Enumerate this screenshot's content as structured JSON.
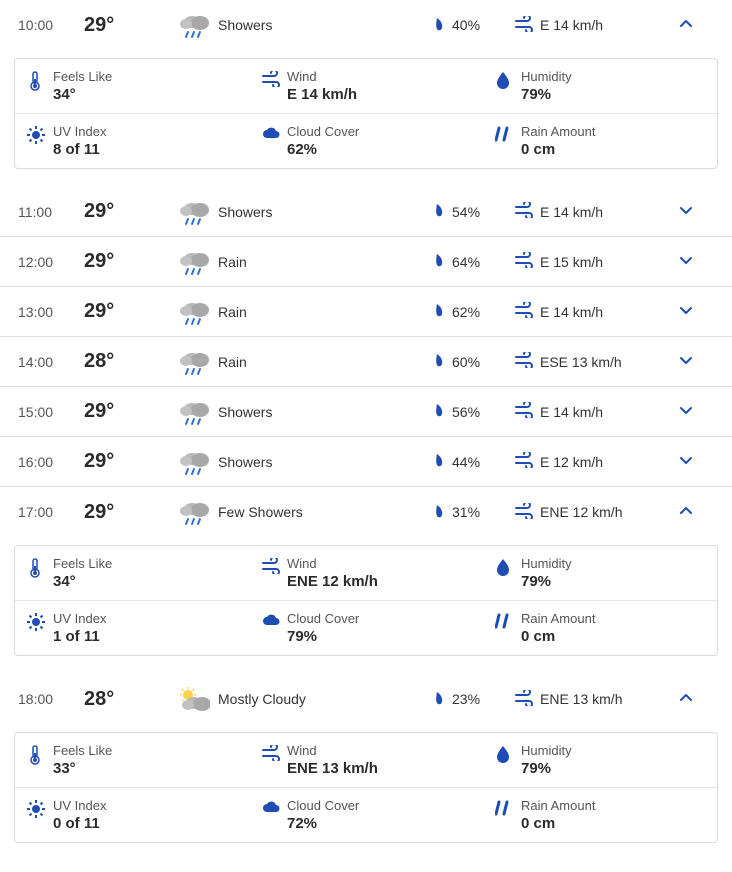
{
  "colors": {
    "accent": "#1f4db3",
    "cloud": "#b8b8b8",
    "cloud_dark": "#9a9a9a",
    "sun": "#ffd24a",
    "rain_drop": "#2f6fd0",
    "text": "#2b2b2b",
    "muted": "#555555",
    "border": "#dedede"
  },
  "detail_labels": {
    "feels": "Feels Like",
    "wind": "Wind",
    "humidity": "Humidity",
    "uv": "UV Index",
    "cloud": "Cloud Cover",
    "rain": "Rain Amount"
  },
  "hours": [
    {
      "time": "10:00",
      "temp": "29°",
      "condition": "Showers",
      "condition_icon": "showers",
      "precip": "40%",
      "wind_text": "E 14 km/h",
      "expanded": true,
      "details": {
        "feels": "34°",
        "wind": "E 14 km/h",
        "humidity": "79%",
        "uv": "8 of 11",
        "cloud": "62%",
        "rain": "0 cm"
      }
    },
    {
      "time": "11:00",
      "temp": "29°",
      "condition": "Showers",
      "condition_icon": "showers",
      "precip": "54%",
      "wind_text": "E 14 km/h",
      "expanded": false
    },
    {
      "time": "12:00",
      "temp": "29°",
      "condition": "Rain",
      "condition_icon": "rain",
      "precip": "64%",
      "wind_text": "E 15 km/h",
      "expanded": false
    },
    {
      "time": "13:00",
      "temp": "29°",
      "condition": "Rain",
      "condition_icon": "rain",
      "precip": "62%",
      "wind_text": "E 14 km/h",
      "expanded": false
    },
    {
      "time": "14:00",
      "temp": "28°",
      "condition": "Rain",
      "condition_icon": "rain",
      "precip": "60%",
      "wind_text": "ESE 13 km/h",
      "expanded": false
    },
    {
      "time": "15:00",
      "temp": "29°",
      "condition": "Showers",
      "condition_icon": "showers",
      "precip": "56%",
      "wind_text": "E 14 km/h",
      "expanded": false
    },
    {
      "time": "16:00",
      "temp": "29°",
      "condition": "Showers",
      "condition_icon": "showers",
      "precip": "44%",
      "wind_text": "E 12 km/h",
      "expanded": false
    },
    {
      "time": "17:00",
      "temp": "29°",
      "condition": "Few Showers",
      "condition_icon": "few_showers",
      "precip": "31%",
      "wind_text": "ENE 12 km/h",
      "expanded": true,
      "details": {
        "feels": "34°",
        "wind": "ENE 12 km/h",
        "humidity": "79%",
        "uv": "1 of 11",
        "cloud": "79%",
        "rain": "0 cm"
      }
    },
    {
      "time": "18:00",
      "temp": "28°",
      "condition": "Mostly Cloudy",
      "condition_icon": "mostly_cloudy",
      "precip": "23%",
      "wind_text": "ENE 13 km/h",
      "expanded": true,
      "details": {
        "feels": "33°",
        "wind": "ENE 13 km/h",
        "humidity": "79%",
        "uv": "0 of 11",
        "cloud": "72%",
        "rain": "0 cm"
      }
    }
  ]
}
